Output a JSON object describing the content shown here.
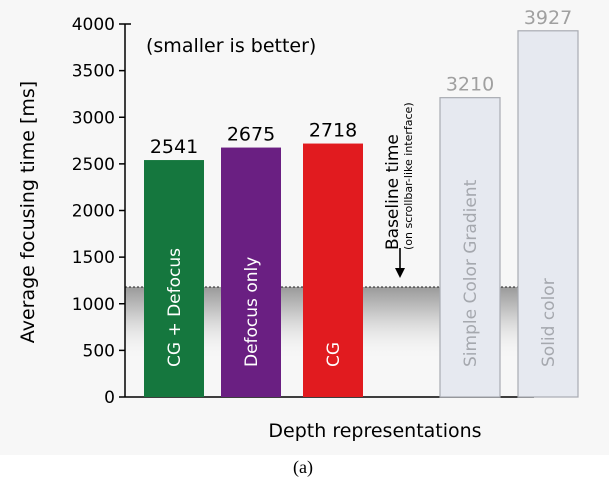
{
  "chart_data": {
    "type": "bar",
    "categories": [
      "CG + Defocus",
      "Defocus only",
      "CG",
      "Simple Color Gradient",
      "Solid color"
    ],
    "values": [
      2541,
      2675,
      2718,
      3210,
      3927
    ],
    "value_labels": [
      "2541",
      "2675",
      "2718",
      "3210",
      "3927"
    ],
    "bar_colors": [
      "#15773e",
      "#6a1f82",
      "#e11b1f",
      "#e6e9f0",
      "#e6e9f0"
    ],
    "bar_text_colors": [
      "#ffffff",
      "#ffffff",
      "#ffffff",
      "#a5a8ae",
      "#a5a8ae"
    ],
    "value_label_colors": [
      "#000000",
      "#000000",
      "#000000",
      "#a0a0a0",
      "#a0a0a0"
    ],
    "ylabel": "Average focusing time [ms]",
    "xlabel": "Depth representations",
    "ylim": [
      0,
      4000
    ],
    "yticks": [
      0,
      500,
      1000,
      1500,
      2000,
      2500,
      3000,
      3500,
      4000
    ],
    "annotation": "(smaller is better)",
    "baseline": {
      "value": 1180,
      "label": "Baseline time",
      "sublabel": "(on scrollbar-like interface)"
    },
    "plot_background": "#f7f7f7",
    "grid": false,
    "legend": "none"
  },
  "caption": "(a)"
}
